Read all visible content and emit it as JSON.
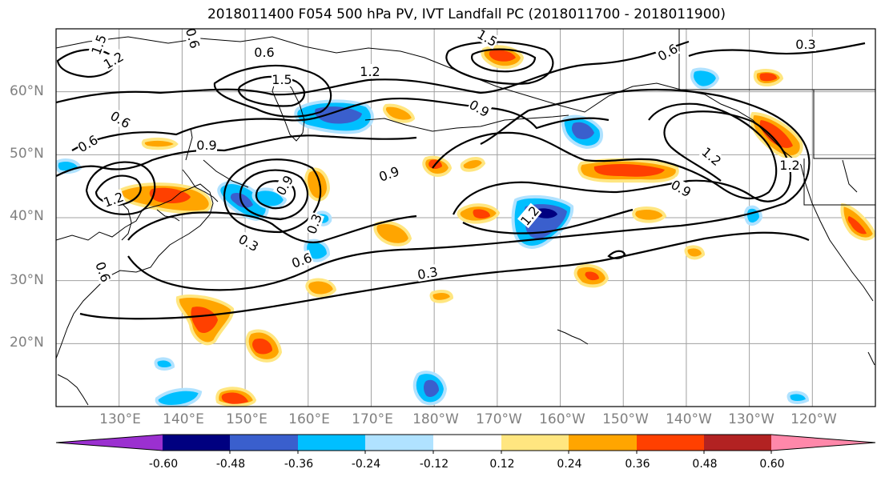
{
  "title": "2018011400 F054 500 hPa PV, IVT Landfall PC (2018011700 - 2018011900)",
  "map": {
    "projection": "cylindrical",
    "region": "North Pacific",
    "lon_range": [
      120,
      250
    ],
    "lat_range": [
      10,
      70
    ],
    "lat_labels": [
      "60°N",
      "50°N",
      "40°N",
      "30°N",
      "20°N"
    ],
    "lon_labels": [
      "130°E",
      "140°E",
      "150°E",
      "160°E",
      "170°E",
      "180°W",
      "170°W",
      "160°W",
      "150°W",
      "140°W",
      "130°W",
      "120°W"
    ],
    "contour_labels": [
      "0.6",
      "1.5",
      "1.2",
      "1.5",
      "0.6",
      "1.5",
      "1.2",
      "0.3",
      "0.6",
      "0.9",
      "0.6",
      "0.9",
      "0.6",
      "1.2",
      "0.9",
      "1.2",
      "0.9",
      "1.2",
      "1.2",
      "0.3",
      "0.6",
      "0.3",
      "0.6",
      "0.3",
      "0.9"
    ],
    "contour_color": "#000000",
    "grid_color": "#a0a0a0"
  },
  "colorbar": {
    "ticks": [
      "-0.60",
      "-0.48",
      "-0.36",
      "-0.24",
      "-0.12",
      "0.12",
      "0.24",
      "0.36",
      "0.48",
      "0.60"
    ],
    "colors": [
      "#9b30d0",
      "#000080",
      "#3a5fcd",
      "#00bfff",
      "#b0e2ff",
      "#ffffff",
      "#ffe680",
      "#ffa500",
      "#ff4000",
      "#b22222",
      "#ff88aa"
    ]
  }
}
